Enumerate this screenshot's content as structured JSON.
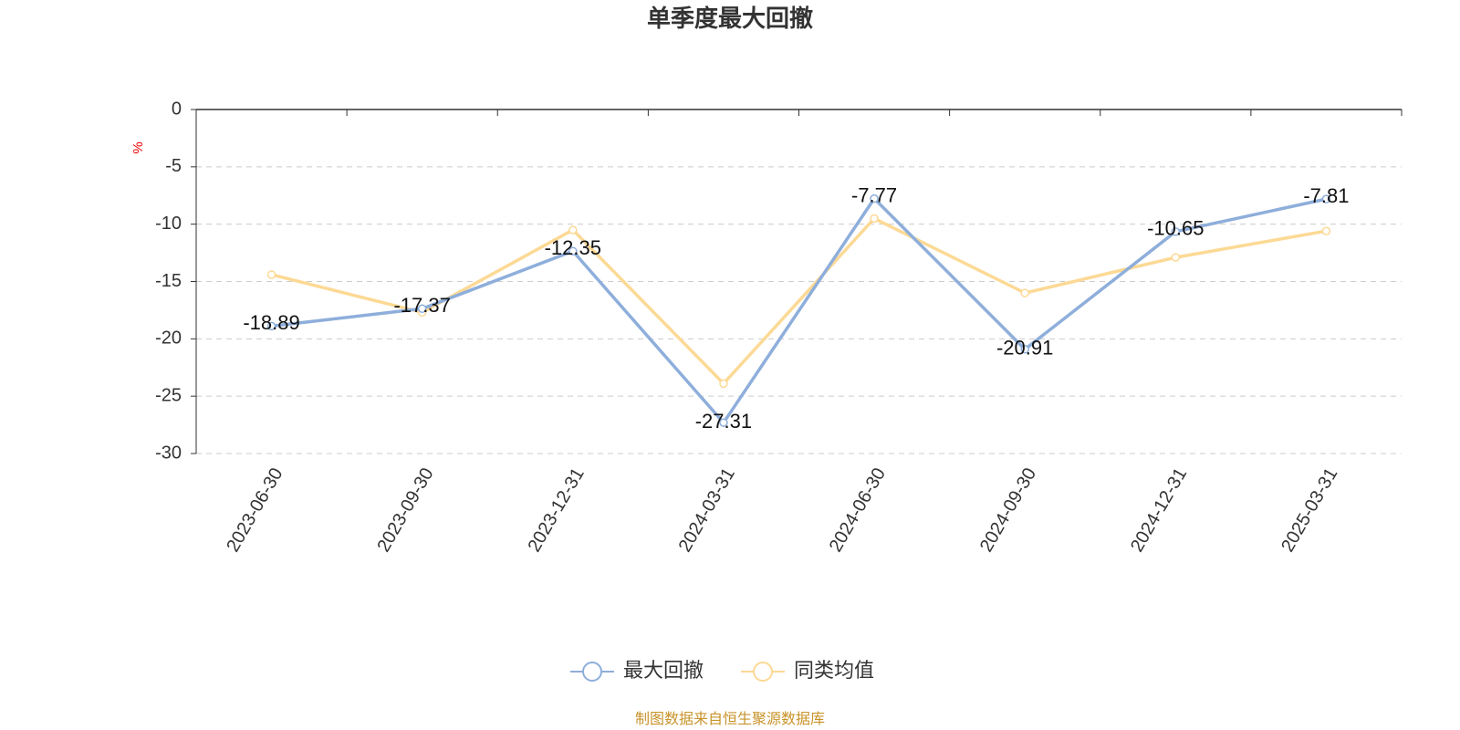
{
  "chart_data": {
    "type": "line",
    "title": "单季度最大回撤",
    "y_label": "%",
    "categories": [
      "2023-06-30",
      "2023-09-30",
      "2023-12-31",
      "2024-03-31",
      "2024-06-30",
      "2024-09-30",
      "2024-12-31",
      "2025-03-31"
    ],
    "series": [
      {
        "name": "最大回撤",
        "color": "#8eaedb",
        "values": [
          -18.89,
          -17.37,
          -12.35,
          -27.31,
          -7.77,
          -20.91,
          -10.65,
          -7.81
        ],
        "show_labels": true
      },
      {
        "name": "同类均值",
        "color": "#fcd995",
        "values": [
          -14.4,
          -17.7,
          -10.5,
          -23.9,
          -9.5,
          -16.0,
          -12.9,
          -10.6
        ],
        "show_labels": false
      }
    ],
    "ylim": [
      -30,
      0
    ],
    "yticks": [
      0,
      -5,
      -10,
      -15,
      -20,
      -25,
      -30
    ],
    "grid": true,
    "legend": "bottom",
    "source": "制图数据来自恒生聚源数据库"
  }
}
